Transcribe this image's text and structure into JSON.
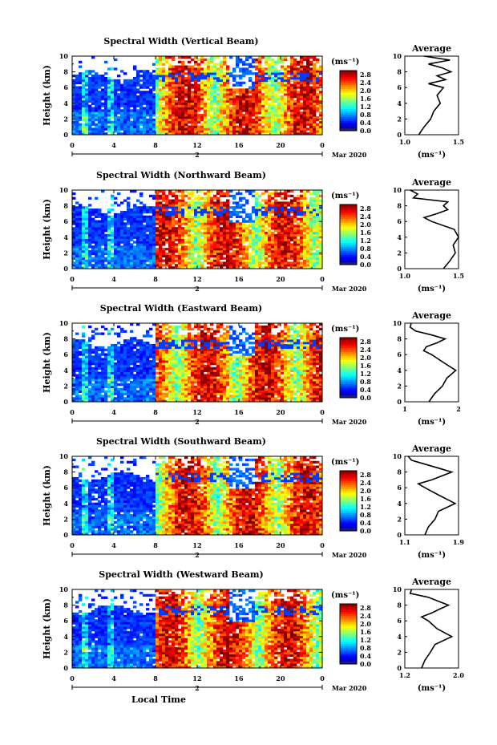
{
  "chart_data": [
    {
      "type": "heatmap",
      "title": "Spectral Width (Vertical Beam)",
      "ylabel": "Height (km)",
      "xlim": [
        0,
        24
      ],
      "ylim": [
        0,
        10
      ],
      "x_ticks": [
        "0",
        "4",
        "8",
        "12",
        "16",
        "20",
        "0"
      ],
      "y_ticks": [
        "0",
        "2",
        "4",
        "6",
        "8",
        "10"
      ],
      "date_label": "2",
      "month_year": "Mar 2020",
      "colorbar": {
        "unit": "(ms⁻¹)",
        "range": [
          0,
          3.0
        ],
        "tick_labels": [
          "0.0",
          "0.4",
          "0.8",
          "1.2",
          "1.6",
          "2.0",
          "2.4",
          "2.8"
        ]
      },
      "profile": {
        "title": "Average",
        "xlabel": "(ms⁻¹)",
        "xlim": [
          1.0,
          1.5
        ],
        "x_ticks": [
          "1.0",
          "1.5"
        ],
        "y_ticks": [
          "0",
          "2",
          "4",
          "6",
          "8",
          "10"
        ],
        "height_km": [
          0,
          1,
          2,
          3,
          4,
          5,
          6,
          6.5,
          7,
          7.5,
          8,
          8.5,
          9,
          9.5,
          10
        ],
        "values": [
          1.13,
          1.18,
          1.24,
          1.27,
          1.33,
          1.3,
          1.36,
          1.22,
          1.38,
          1.3,
          1.43,
          1.35,
          1.22,
          1.42,
          1.18
        ]
      }
    },
    {
      "type": "heatmap",
      "title": "Spectral Width (Northward Beam)",
      "ylabel": "Height (km)",
      "xlim": [
        0,
        24
      ],
      "ylim": [
        0,
        10
      ],
      "x_ticks": [
        "0",
        "4",
        "8",
        "12",
        "16",
        "20",
        "0"
      ],
      "y_ticks": [
        "0",
        "2",
        "4",
        "6",
        "8",
        "10"
      ],
      "date_label": "2",
      "month_year": "Mar 2020",
      "colorbar": {
        "unit": "(ms⁻¹)",
        "range": [
          0,
          3.0
        ],
        "tick_labels": [
          "0.0",
          "0.4",
          "0.8",
          "1.2",
          "1.6",
          "2.0",
          "2.4",
          "2.8"
        ]
      },
      "profile": {
        "title": "Average",
        "xlabel": "(ms⁻¹)",
        "xlim": [
          1.0,
          1.5
        ],
        "x_ticks": [
          "1.0",
          "1.5"
        ],
        "y_ticks": [
          "0",
          "2",
          "4",
          "6",
          "8",
          "10"
        ],
        "height_km": [
          0,
          1,
          2,
          3,
          4,
          5,
          6,
          6.5,
          7,
          7.5,
          8,
          8.5,
          9,
          9.5,
          10
        ],
        "values": [
          1.36,
          1.42,
          1.47,
          1.45,
          1.5,
          1.46,
          1.25,
          1.18,
          1.3,
          1.4,
          1.36,
          1.4,
          1.08,
          1.12,
          1.05
        ]
      }
    },
    {
      "type": "heatmap",
      "title": "Spectral Width (Eastward Beam)",
      "ylabel": "Height (km)",
      "xlim": [
        0,
        24
      ],
      "ylim": [
        0,
        10
      ],
      "x_ticks": [
        "0",
        "4",
        "8",
        "12",
        "16",
        "20",
        "0"
      ],
      "y_ticks": [
        "0",
        "2",
        "4",
        "6",
        "8",
        "10"
      ],
      "date_label": "2",
      "month_year": "Mar 2020",
      "colorbar": {
        "unit": "(ms⁻¹)",
        "range": [
          0,
          3.0
        ],
        "tick_labels": [
          "0.0",
          "0.4",
          "0.8",
          "1.2",
          "1.6",
          "2.0",
          "2.4",
          "2.8"
        ]
      },
      "profile": {
        "title": "Average",
        "xlabel": "(ms⁻¹)",
        "xlim": [
          1,
          2
        ],
        "x_ticks": [
          "1",
          "2"
        ],
        "y_ticks": [
          "0",
          "2",
          "4",
          "6",
          "8",
          "10"
        ],
        "height_km": [
          0,
          1,
          2,
          3,
          4,
          5,
          6,
          6.5,
          7,
          7.5,
          8,
          8.5,
          9,
          9.5,
          10
        ],
        "values": [
          1.45,
          1.55,
          1.7,
          1.78,
          1.95,
          1.72,
          1.5,
          1.35,
          1.4,
          1.6,
          1.75,
          1.5,
          1.2,
          1.1,
          1.12
        ]
      }
    },
    {
      "type": "heatmap",
      "title": "Spectral Width (Southward Beam)",
      "ylabel": "Height (km)",
      "xlim": [
        0,
        24
      ],
      "ylim": [
        0,
        10
      ],
      "x_ticks": [
        "0",
        "4",
        "8",
        "12",
        "16",
        "20",
        "0"
      ],
      "y_ticks": [
        "0",
        "2",
        "4",
        "6",
        "8",
        "10"
      ],
      "date_label": "2",
      "month_year": "Mar 2020",
      "colorbar": {
        "unit": "(ms⁻¹)",
        "range": [
          0,
          3.0
        ],
        "tick_labels": [
          "0.0",
          "0.4",
          "0.8",
          "1.2",
          "1.6",
          "2.0",
          "2.4",
          "2.8"
        ]
      },
      "profile": {
        "title": "Average",
        "xlabel": "(ms⁻¹)",
        "xlim": [
          1.1,
          1.9
        ],
        "x_ticks": [
          "1.1",
          "1.9"
        ],
        "y_ticks": [
          "0",
          "2",
          "4",
          "6",
          "8",
          "10"
        ],
        "height_km": [
          0,
          1,
          2,
          3,
          4,
          5,
          6,
          6.5,
          7,
          7.5,
          8,
          8.5,
          9,
          9.5,
          10
        ],
        "values": [
          1.4,
          1.45,
          1.55,
          1.6,
          1.85,
          1.62,
          1.4,
          1.3,
          1.5,
          1.65,
          1.8,
          1.6,
          1.4,
          1.2,
          1.15
        ]
      }
    },
    {
      "type": "heatmap",
      "title": "Spectral Width (Westward Beam)",
      "ylabel": "Height (km)",
      "xlabel": "Local Time",
      "xlim": [
        0,
        24
      ],
      "ylim": [
        0,
        10
      ],
      "x_ticks": [
        "0",
        "4",
        "8",
        "12",
        "16",
        "20",
        "0"
      ],
      "y_ticks": [
        "0",
        "2",
        "4",
        "6",
        "8",
        "10"
      ],
      "date_label": "2",
      "month_year": "Mar 2020",
      "colorbar": {
        "unit": "(ms⁻¹)",
        "range": [
          0,
          3.0
        ],
        "tick_labels": [
          "0.0",
          "0.4",
          "0.8",
          "1.2",
          "1.6",
          "2.0",
          "2.4",
          "2.8"
        ]
      },
      "profile": {
        "title": "Average",
        "xlabel": "(ms⁻¹)",
        "xlim": [
          1.2,
          2.0
        ],
        "x_ticks": [
          "1.2",
          "2.0"
        ],
        "y_ticks": [
          "0",
          "2",
          "4",
          "6",
          "8",
          "10"
        ],
        "height_km": [
          0,
          1,
          2,
          3,
          4,
          5,
          6,
          6.5,
          7,
          7.5,
          8,
          8.5,
          9,
          9.5,
          10
        ],
        "values": [
          1.45,
          1.5,
          1.58,
          1.65,
          1.9,
          1.68,
          1.55,
          1.45,
          1.6,
          1.72,
          1.85,
          1.7,
          1.55,
          1.28,
          1.3
        ]
      }
    }
  ]
}
